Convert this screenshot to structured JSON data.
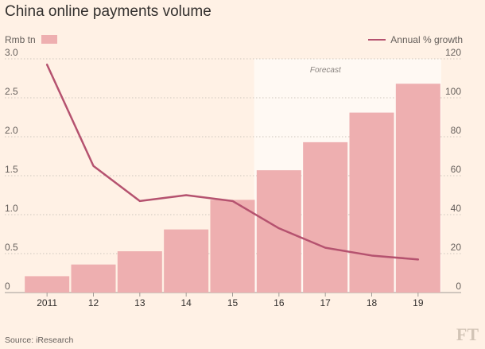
{
  "chart_data": {
    "type": "bar",
    "title": "China online payments volume",
    "categories": [
      "2011",
      "12",
      "13",
      "14",
      "15",
      "16",
      "17",
      "18",
      "19"
    ],
    "series": [
      {
        "name": "Rmb tn",
        "kind": "bar",
        "axis": "left",
        "color": "#eeafb0",
        "values": [
          0.21,
          0.36,
          0.53,
          0.81,
          1.19,
          1.57,
          1.93,
          2.31,
          2.68
        ]
      },
      {
        "name": "Annual % growth",
        "kind": "line",
        "axis": "right",
        "color": "#b5526f",
        "values": [
          117,
          65,
          47,
          50,
          47,
          33,
          23,
          19,
          17
        ]
      }
    ],
    "y_left": {
      "title": "Rmb tn",
      "range": [
        0,
        3.0
      ],
      "ticks": [
        0,
        0.5,
        1.0,
        1.5,
        2.0,
        2.5,
        3.0
      ],
      "tick_labels": [
        "0",
        "0.5",
        "1.0",
        "1.5",
        "2.0",
        "2.5",
        "3.0"
      ]
    },
    "y_right": {
      "title": "Annual % growth",
      "range": [
        0,
        120
      ],
      "ticks": [
        0,
        20,
        40,
        60,
        80,
        100,
        120
      ],
      "tick_labels": [
        "0",
        "20",
        "40",
        "60",
        "80",
        "100",
        "120"
      ]
    },
    "forecast": {
      "label": "Forecast",
      "from_category": "16",
      "to_category": "19",
      "color": "#fff9f3"
    },
    "grid": "horizontal dotted",
    "legend": "top",
    "source": "Source: iResearch",
    "logo": "FT"
  }
}
